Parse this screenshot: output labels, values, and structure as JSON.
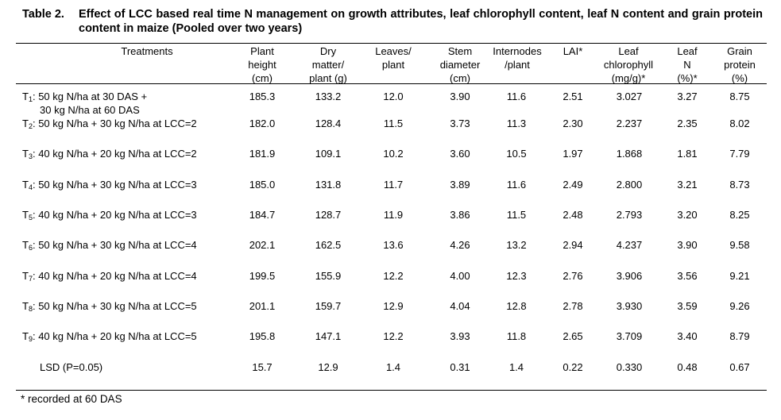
{
  "caption": {
    "label": "Table 2.",
    "text": "Effect of LCC based real time N management on growth attributes, leaf chlorophyll content, leaf N content and grain protein content in maize (Pooled over two years)"
  },
  "headers": [
    "Treatments",
    "Plant\nheight\n(cm)",
    "Dry\nmatter/\nplant (g)",
    "Leaves/\nplant",
    "Stem\ndiameter\n(cm)",
    "Internodes\n/plant",
    "LAI*",
    "Leaf\nchlorophyll\n(mg/g)*",
    "Leaf\nN\n(%)*",
    "Grain\nprotein\n(%)"
  ],
  "rows": [
    {
      "t": "T",
      "sub": "1",
      "label": ": 50 kg N/ha at 30 DAS +",
      "label2": "30 kg N/ha at 60 DAS",
      "values": [
        "185.3",
        "133.2",
        "12.0",
        "3.90",
        "11.6",
        "2.51",
        "3.027",
        "3.27",
        "8.75"
      ]
    },
    {
      "t": "T",
      "sub": "2",
      "label": ": 50 kg N/ha + 30 kg N/ha at LCC=2",
      "values": [
        "182.0",
        "128.4",
        "11.5",
        "3.73",
        "11.3",
        "2.30",
        "2.237",
        "2.35",
        "8.02"
      ]
    },
    {
      "t": "T",
      "sub": "3",
      "label": ": 40 kg N/ha + 20 kg N/ha at LCC=2",
      "values": [
        "181.9",
        "109.1",
        "10.2",
        "3.60",
        "10.5",
        "1.97",
        "1.868",
        "1.81",
        "7.79"
      ]
    },
    {
      "t": "T",
      "sub": "4",
      "label": ": 50 kg N/ha + 30 kg N/ha at LCC=3",
      "values": [
        "185.0",
        "131.8",
        "11.7",
        "3.89",
        "11.6",
        "2.49",
        "2.800",
        "3.21",
        "8.73"
      ]
    },
    {
      "t": "T",
      "sub": "5",
      "label": ": 40 kg N/ha + 20 kg N/ha at LCC=3",
      "values": [
        "184.7",
        "128.7",
        "11.9",
        "3.86",
        "11.5",
        "2.48",
        "2.793",
        "3.20",
        "8.25"
      ]
    },
    {
      "t": "T",
      "sub": "6",
      "label": ": 50 kg N/ha + 30 kg N/ha at LCC=4",
      "values": [
        "202.1",
        "162.5",
        "13.6",
        "4.26",
        "13.2",
        "2.94",
        "4.237",
        "3.90",
        "9.58"
      ]
    },
    {
      "t": "T",
      "sub": "7",
      "label": ": 40 kg N/ha + 20 kg N/ha at LCC=4",
      "values": [
        "199.5",
        "155.9",
        "12.2",
        "4.00",
        "12.3",
        "2.76",
        "3.906",
        "3.56",
        "9.21"
      ]
    },
    {
      "t": "T",
      "sub": "8",
      "label": ": 50 kg N/ha + 30 kg N/ha at LCC=5",
      "values": [
        "201.1",
        "159.7",
        "12.9",
        "4.04",
        "12.8",
        "2.78",
        "3.930",
        "3.59",
        "9.26"
      ]
    },
    {
      "t": "T",
      "sub": "9",
      "label": ": 40 kg N/ha + 20 kg N/ha at LCC=5",
      "values": [
        "195.8",
        "147.1",
        "12.2",
        "3.93",
        "11.8",
        "2.65",
        "3.709",
        "3.40",
        "8.79"
      ]
    }
  ],
  "lsd": {
    "label": "LSD (P=0.05)",
    "values": [
      "15.7",
      "12.9",
      "1.4",
      "0.31",
      "1.4",
      "0.22",
      "0.330",
      "0.48",
      "0.67"
    ]
  },
  "footnote": "* recorded at 60 DAS"
}
